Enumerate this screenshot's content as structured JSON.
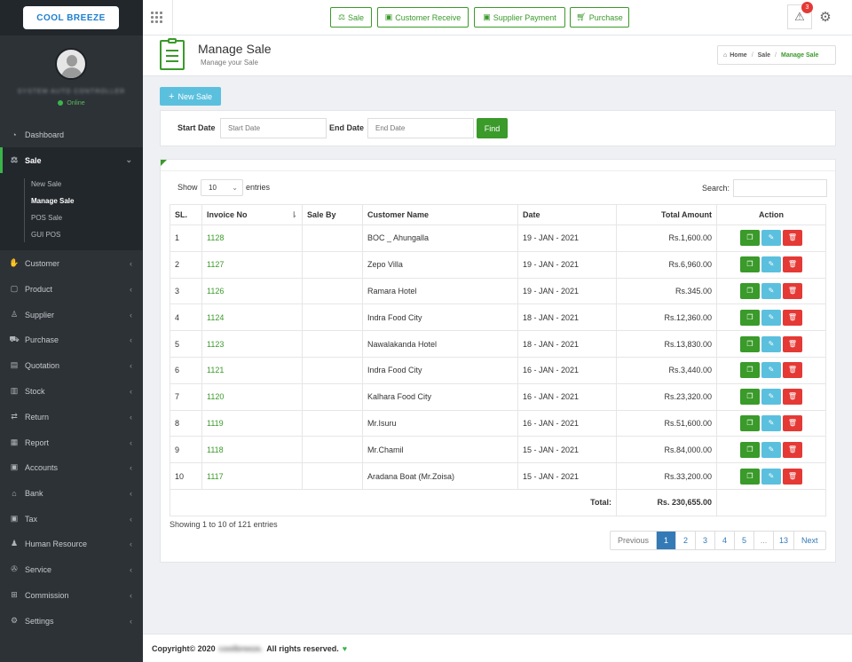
{
  "brand": {
    "logo_text": "COOL BREEZE"
  },
  "user": {
    "status": "Online"
  },
  "sidebar": {
    "items": [
      {
        "label": "Dashboard",
        "icon": "dashboard-icon"
      },
      {
        "label": "Sale",
        "icon": "scale-icon"
      },
      {
        "label": "Customer",
        "icon": "handshake-icon"
      },
      {
        "label": "Product",
        "icon": "bag-icon"
      },
      {
        "label": "Supplier",
        "icon": "user-icon"
      },
      {
        "label": "Purchase",
        "icon": "cart-icon"
      },
      {
        "label": "Quotation",
        "icon": "book-icon"
      },
      {
        "label": "Stock",
        "icon": "chart-icon"
      },
      {
        "label": "Return",
        "icon": "exchange-icon"
      },
      {
        "label": "Report",
        "icon": "report-icon"
      },
      {
        "label": "Accounts",
        "icon": "money-icon"
      },
      {
        "label": "Bank",
        "icon": "bank-icon"
      },
      {
        "label": "Tax",
        "icon": "tax-icon"
      },
      {
        "label": "Human Resource",
        "icon": "users-icon"
      },
      {
        "label": "Service",
        "icon": "wrench-icon"
      },
      {
        "label": "Commission",
        "icon": "grid-icon"
      },
      {
        "label": "Settings",
        "icon": "gear-icon"
      }
    ],
    "sale_submenu": [
      "New Sale",
      "Manage Sale",
      "POS Sale",
      "GUI POS"
    ]
  },
  "topbar": {
    "quick_buttons": [
      "Sale",
      "Customer Receive",
      "Supplier Payment",
      "Purchase"
    ],
    "alert_count": "3"
  },
  "header": {
    "title": "Manage Sale",
    "subtitle": "Manage your Sale",
    "breadcrumb": [
      "Home",
      "Sale",
      "Manage Sale"
    ]
  },
  "actions": {
    "new_sale": "New Sale"
  },
  "filter": {
    "start_label": "Start Date",
    "start_placeholder": "Start Date",
    "end_label": "End Date",
    "end_placeholder": "End Date",
    "find": "Find"
  },
  "table": {
    "show_label": "Show",
    "entries_value": "10",
    "entries_label": "entries",
    "search_label": "Search:",
    "columns": [
      "SL.",
      "Invoice No",
      "Sale By",
      "Customer Name",
      "Date",
      "Total Amount",
      "Action"
    ],
    "rows": [
      {
        "sl": "1",
        "invoice": "1128",
        "sale_by": "",
        "customer": "BOC _ Ahungalla",
        "date": "19 - JAN - 2021",
        "amount": "Rs.1,600.00"
      },
      {
        "sl": "2",
        "invoice": "1127",
        "sale_by": "",
        "customer": "Zepo Villa",
        "date": "19 - JAN - 2021",
        "amount": "Rs.6,960.00"
      },
      {
        "sl": "3",
        "invoice": "1126",
        "sale_by": "",
        "customer": "Ramara Hotel",
        "date": "19 - JAN - 2021",
        "amount": "Rs.345.00"
      },
      {
        "sl": "4",
        "invoice": "1124",
        "sale_by": "",
        "customer": "Indra Food City",
        "date": "18 - JAN - 2021",
        "amount": "Rs.12,360.00"
      },
      {
        "sl": "5",
        "invoice": "1123",
        "sale_by": "",
        "customer": "Nawalakanda Hotel",
        "date": "18 - JAN - 2021",
        "amount": "Rs.13,830.00"
      },
      {
        "sl": "6",
        "invoice": "1121",
        "sale_by": "",
        "customer": "Indra Food City",
        "date": "16 - JAN - 2021",
        "amount": "Rs.3,440.00"
      },
      {
        "sl": "7",
        "invoice": "1120",
        "sale_by": "",
        "customer": "Kalhara Food City",
        "date": "16 - JAN - 2021",
        "amount": "Rs.23,320.00"
      },
      {
        "sl": "8",
        "invoice": "1119",
        "sale_by": "",
        "customer": "Mr.Isuru",
        "date": "16 - JAN - 2021",
        "amount": "Rs.51,600.00"
      },
      {
        "sl": "9",
        "invoice": "1118",
        "sale_by": "",
        "customer": "Mr.Chamil",
        "date": "15 - JAN - 2021",
        "amount": "Rs.84,000.00"
      },
      {
        "sl": "10",
        "invoice": "1117",
        "sale_by": "",
        "customer": "Aradana Boat (Mr.Zoisa)",
        "date": "15 - JAN - 2021",
        "amount": "Rs.33,200.00"
      }
    ],
    "total_label": "Total:",
    "total_value": "Rs. 230,655.00",
    "showing": "Showing 1 to 10 of 121 entries",
    "pagination": [
      "Previous",
      "1",
      "2",
      "3",
      "4",
      "5",
      "...",
      "13",
      "Next"
    ],
    "active_page": "1"
  },
  "footer": {
    "copyright": "Copyright© 2020",
    "company": "coolbreeze.",
    "rights": "All rights reserved."
  },
  "colors": {
    "accent": "#3a9a2a",
    "info": "#5bc0de",
    "danger": "#e53935",
    "sidebar": "#2d3237"
  }
}
